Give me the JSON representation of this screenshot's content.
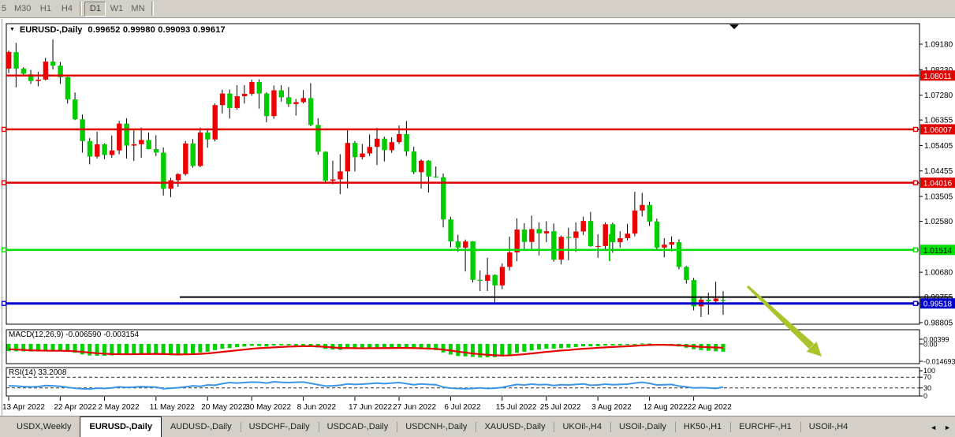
{
  "toolbar": {
    "timeframes": [
      {
        "label": "5",
        "active": false
      },
      {
        "label": "M30",
        "active": false
      },
      {
        "label": "H1",
        "active": false
      },
      {
        "label": "H4",
        "active": false
      },
      {
        "label": "D1",
        "active": true
      },
      {
        "label": "W1",
        "active": false
      },
      {
        "label": "MN",
        "active": false
      }
    ]
  },
  "chart": {
    "symbol_period": "EURUSD-,Daily",
    "ohlc_quote": "0.99652 0.99980 0.99093 0.99617",
    "dropdown_icon": "▼"
  },
  "indicators": {
    "macd_label": "MACD(12,26,9) -0.006590 -0.003154",
    "rsi_label": "RSI(14) 33.2008",
    "macd_axis_labels": [
      "0.00399",
      "0.00",
      "-0.014693"
    ],
    "macd_axis_values": [
      0.00399,
      0,
      -0.014693
    ],
    "rsi_axis_labels": [
      "100",
      "70",
      "30",
      "0"
    ],
    "rsi_axis_values": [
      100,
      70,
      30,
      0
    ]
  },
  "price_axis": {
    "labels": [
      "1.09180",
      "1.08230",
      "1.07280",
      "1.06355",
      "1.05405",
      "1.04455",
      "1.03505",
      "1.02580",
      "1.00680",
      "0.99755",
      "0.98805"
    ],
    "badges": [
      {
        "text": "1.08011",
        "value": 1.08011,
        "bg": "#e00000",
        "fg": "#ffffff"
      },
      {
        "text": "1.06007",
        "value": 1.06007,
        "bg": "#e00000",
        "fg": "#ffffff"
      },
      {
        "text": "1.04016",
        "value": 1.04016,
        "bg": "#e00000",
        "fg": "#ffffff"
      },
      {
        "text": "1.01514",
        "value": 1.01514,
        "bg": "#00e000",
        "fg": "#000000"
      },
      {
        "text": "0.99518",
        "value": 0.99518,
        "bg": "#0000cc",
        "fg": "#ffffff"
      }
    ]
  },
  "tabbar": {
    "tabs": [
      {
        "label": "USDX,Weekly",
        "active": false
      },
      {
        "label": "EURUSD-,Daily",
        "active": true
      },
      {
        "label": "AUDUSD-,Daily",
        "active": false
      },
      {
        "label": "USDCHF-,Daily",
        "active": false
      },
      {
        "label": "USDCAD-,Daily",
        "active": false
      },
      {
        "label": "USDCNH-,Daily",
        "active": false
      },
      {
        "label": "XAUUSD-,Daily",
        "active": false
      },
      {
        "label": "UKOil-,H4",
        "active": false
      },
      {
        "label": "USOil-,Daily",
        "active": false
      },
      {
        "label": "HK50-,H1",
        "active": false
      },
      {
        "label": "EURCHF-,H1",
        "active": false
      },
      {
        "label": "USOil-,H4",
        "active": false
      }
    ],
    "scroll_left": "◄",
    "scroll_right": "►"
  },
  "chart_data": {
    "type": "candlestick",
    "symbol": "EURUSD-",
    "timeframe": "Daily",
    "bull_color": "#ee0000",
    "bear_color": "#00cc00",
    "ylim": [
      0.98745,
      1.09944
    ],
    "date_labels": [
      "13 Apr 2022",
      "22 Apr 2022",
      "2 May 2022",
      "11 May 2022",
      "20 May 2022",
      "30 May 2022",
      "8 Jun 2022",
      "17 Jun 2022",
      "27 Jun 2022",
      "6 Jul 2022",
      "15 Jul 2022",
      "25 Jul 2022",
      "3 Aug 2022",
      "12 Aug 2022",
      "22 Aug 2022"
    ],
    "date_label_indices": [
      0,
      7,
      13,
      20,
      27,
      33,
      40,
      47,
      53,
      60,
      67,
      73,
      80,
      87,
      93
    ],
    "candles": [
      [
        1.0827,
        1.0895,
        1.081,
        1.0889
      ],
      [
        1.0888,
        1.0923,
        1.0757,
        1.0827
      ],
      [
        1.0827,
        1.0832,
        1.0798,
        1.0808
      ],
      [
        1.0806,
        1.0822,
        1.077,
        1.0781
      ],
      [
        1.0781,
        1.0815,
        1.0761,
        1.0786
      ],
      [
        1.0786,
        1.0867,
        1.0782,
        1.0853
      ],
      [
        1.0853,
        1.0936,
        1.0824,
        1.0838
      ],
      [
        1.0838,
        1.0852,
        1.077,
        1.0795
      ],
      [
        1.0795,
        1.0797,
        1.0697,
        1.0712
      ],
      [
        1.0712,
        1.0738,
        1.0635,
        1.0638
      ],
      [
        1.0638,
        1.0656,
        1.0514,
        1.0557
      ],
      [
        1.0557,
        1.0568,
        1.047,
        1.0499
      ],
      [
        1.0499,
        1.0592,
        1.0492,
        1.0545
      ],
      [
        1.0545,
        1.0548,
        1.049,
        1.0505
      ],
      [
        1.0505,
        1.0578,
        1.0495,
        1.0522
      ],
      [
        1.0522,
        1.0632,
        1.0508,
        1.0622
      ],
      [
        1.0622,
        1.0642,
        1.0492,
        1.054
      ],
      [
        1.054,
        1.0599,
        1.0483,
        1.0545
      ],
      [
        1.0545,
        1.0607,
        1.0495,
        1.0561
      ],
      [
        1.0561,
        1.0589,
        1.0526,
        1.0527
      ],
      [
        1.0527,
        1.0579,
        1.0501,
        1.0514
      ],
      [
        1.0514,
        1.0533,
        1.0354,
        1.0379
      ],
      [
        1.0379,
        1.042,
        1.0348,
        1.0411
      ],
      [
        1.0411,
        1.0437,
        1.0386,
        1.0434
      ],
      [
        1.0434,
        1.0557,
        1.0428,
        1.0548
      ],
      [
        1.0548,
        1.0564,
        1.0458,
        1.0464
      ],
      [
        1.0464,
        1.0607,
        1.0459,
        1.0589
      ],
      [
        1.0589,
        1.0604,
        1.0532,
        1.0563
      ],
      [
        1.0563,
        1.0697,
        1.0556,
        1.0691
      ],
      [
        1.0691,
        1.0748,
        1.066,
        1.0734
      ],
      [
        1.0734,
        1.0749,
        1.0641,
        1.068
      ],
      [
        1.068,
        1.0765,
        1.0674,
        1.0724
      ],
      [
        1.0724,
        1.0765,
        1.0697,
        1.0733
      ],
      [
        1.0733,
        1.0786,
        1.0726,
        1.0777
      ],
      [
        1.0777,
        1.0787,
        1.0678,
        1.0734
      ],
      [
        1.0734,
        1.0739,
        1.0627,
        1.065
      ],
      [
        1.065,
        1.0764,
        1.064,
        1.0746
      ],
      [
        1.0746,
        1.0765,
        1.0704,
        1.072
      ],
      [
        1.072,
        1.0758,
        1.0684,
        1.0695
      ],
      [
        1.0695,
        1.0714,
        1.0652,
        1.0702
      ],
      [
        1.0702,
        1.0747,
        1.0697,
        1.0717
      ],
      [
        1.0717,
        1.0773,
        1.0612,
        1.0617
      ],
      [
        1.0617,
        1.0642,
        1.0506,
        1.0517
      ],
      [
        1.0517,
        1.0519,
        1.0398,
        1.0409
      ],
      [
        1.0409,
        1.0484,
        1.0396,
        1.0414
      ],
      [
        1.0414,
        1.0508,
        1.0359,
        1.0444
      ],
      [
        1.0444,
        1.0601,
        1.0381,
        1.055
      ],
      [
        1.055,
        1.0557,
        1.0444,
        1.0497
      ],
      [
        1.0497,
        1.0546,
        1.0489,
        1.0511
      ],
      [
        1.0511,
        1.0582,
        1.0501,
        1.0535
      ],
      [
        1.0535,
        1.0606,
        1.0468,
        1.0566
      ],
      [
        1.0566,
        1.0573,
        1.0481,
        1.0523
      ],
      [
        1.0523,
        1.0571,
        1.0513,
        1.0553
      ],
      [
        1.0553,
        1.0615,
        1.0546,
        1.0583
      ],
      [
        1.0583,
        1.0632,
        1.0501,
        1.0518
      ],
      [
        1.0518,
        1.0536,
        1.0434,
        1.0441
      ],
      [
        1.0441,
        1.0489,
        1.038,
        1.0484
      ],
      [
        1.0484,
        1.0486,
        1.0365,
        1.0425
      ],
      [
        1.0425,
        1.0462,
        1.042,
        1.0422
      ],
      [
        1.0422,
        1.0436,
        1.0235,
        1.0265
      ],
      [
        1.0265,
        1.0275,
        1.0161,
        1.0183
      ],
      [
        1.0183,
        1.0208,
        1.0144,
        1.016
      ],
      [
        1.016,
        1.019,
        1.0071,
        1.0183
      ],
      [
        1.0183,
        1.0184,
        1.003,
        1.004
      ],
      [
        1.004,
        1.0075,
        0.9998,
        1.0036
      ],
      [
        1.0036,
        1.0122,
        0.9998,
        1.0058
      ],
      [
        1.0058,
        1.006,
        0.9952,
        1.0019
      ],
      [
        1.0019,
        1.0101,
        1.0005,
        1.0088
      ],
      [
        1.0088,
        1.0201,
        1.0075,
        1.0142
      ],
      [
        1.0142,
        1.0269,
        1.0109,
        1.0227
      ],
      [
        1.0227,
        1.0251,
        1.0155,
        1.0181
      ],
      [
        1.0181,
        1.0279,
        1.0152,
        1.0229
      ],
      [
        1.0229,
        1.0254,
        1.0131,
        1.0213
      ],
      [
        1.0213,
        1.0258,
        1.018,
        1.0221
      ],
      [
        1.0221,
        1.025,
        1.0108,
        1.0115
      ],
      [
        1.0115,
        1.0205,
        1.0097,
        1.02
      ],
      [
        1.02,
        1.0234,
        1.0113,
        1.0196
      ],
      [
        1.0196,
        1.0254,
        1.0144,
        1.022
      ],
      [
        1.022,
        1.0275,
        1.0207,
        1.0259
      ],
      [
        1.0259,
        1.0293,
        1.0163,
        1.0165
      ],
      [
        1.0165,
        1.021,
        1.0122,
        1.0166
      ],
      [
        1.0166,
        1.0254,
        1.0151,
        1.0247
      ],
      [
        1.0247,
        1.0253,
        1.0141,
        1.018
      ],
      [
        1.018,
        1.0221,
        1.0159,
        1.0195
      ],
      [
        1.0195,
        1.0249,
        1.0187,
        1.0212
      ],
      [
        1.0212,
        1.0368,
        1.0202,
        1.0298
      ],
      [
        1.0298,
        1.0364,
        1.0276,
        1.0319
      ],
      [
        1.0319,
        1.0331,
        1.0241,
        1.0257
      ],
      [
        1.0257,
        1.0268,
        1.0154,
        1.016
      ],
      [
        1.016,
        1.0195,
        1.0124,
        1.0171
      ],
      [
        1.0171,
        1.0202,
        1.0146,
        1.018
      ],
      [
        1.018,
        1.0191,
        1.0079,
        1.0088
      ],
      [
        1.0088,
        1.0092,
        1.0026,
        1.0039
      ],
      [
        1.0039,
        1.0047,
        0.9926,
        0.9941
      ],
      [
        0.9941,
        0.9975,
        0.9901,
        0.9966
      ],
      [
        0.9966,
        0.9992,
        0.991,
        0.996
      ],
      [
        0.996,
        1.0033,
        0.9947,
        0.997
      ],
      [
        0.99652,
        0.9998,
        0.99093,
        0.99617
      ]
    ],
    "hlines": [
      {
        "price": 1.08011,
        "color": "#e00000",
        "width": 2.5,
        "handles": false,
        "start_frac": 0
      },
      {
        "price": 1.06007,
        "color": "#e00000",
        "width": 2.5,
        "handles": true,
        "start_frac": 0
      },
      {
        "price": 1.04016,
        "color": "#e00000",
        "width": 2.5,
        "handles": true,
        "start_frac": 0
      },
      {
        "price": 1.01514,
        "color": "#00e000",
        "width": 2.5,
        "handles": true,
        "start_frac": 0
      },
      {
        "price": 0.99755,
        "color": "#000000",
        "width": 2,
        "handles": false,
        "start_frac": 0.19,
        "extend_over_axis": true
      },
      {
        "price": 0.99518,
        "color": "#0000cc",
        "width": 3,
        "handles": true,
        "start_frac": 0
      }
    ],
    "macd": {
      "hist_color": "#00d300",
      "signal_color": "#e60000",
      "histogram": [
        -0.006,
        -0.0062,
        -0.0063,
        -0.0064,
        -0.0063,
        -0.006,
        -0.0058,
        -0.0059,
        -0.0065,
        -0.0075,
        -0.0088,
        -0.0098,
        -0.01,
        -0.01,
        -0.0097,
        -0.009,
        -0.0088,
        -0.0086,
        -0.0082,
        -0.008,
        -0.008,
        -0.0092,
        -0.0096,
        -0.0095,
        -0.0085,
        -0.0082,
        -0.0072,
        -0.0066,
        -0.0052,
        -0.004,
        -0.0035,
        -0.0028,
        -0.0022,
        -0.0016,
        -0.0018,
        -0.0022,
        -0.0014,
        -0.0011,
        -0.0012,
        -0.0013,
        -0.0012,
        -0.0018,
        -0.003,
        -0.0042,
        -0.0048,
        -0.005,
        -0.0042,
        -0.004,
        -0.0038,
        -0.0035,
        -0.0033,
        -0.0034,
        -0.0033,
        -0.003,
        -0.0034,
        -0.0042,
        -0.0044,
        -0.0048,
        -0.0052,
        -0.0072,
        -0.009,
        -0.0102,
        -0.0105,
        -0.011,
        -0.0115,
        -0.0113,
        -0.0112,
        -0.0105,
        -0.0092,
        -0.0075,
        -0.0066,
        -0.0055,
        -0.0048,
        -0.004,
        -0.004,
        -0.0036,
        -0.0032,
        -0.0026,
        -0.002,
        -0.002,
        -0.002,
        -0.0014,
        -0.0013,
        -0.0012,
        -0.0009,
        -0.0002,
        0.0004,
        0.0004,
        -0.0002,
        -0.001,
        -0.0014,
        -0.0022,
        -0.0032,
        -0.0045,
        -0.0052,
        -0.0058,
        -0.0062,
        -0.0066
      ],
      "signal": [
        -0.0045,
        -0.0048,
        -0.0051,
        -0.0054,
        -0.0056,
        -0.0057,
        -0.0058,
        -0.0058,
        -0.0059,
        -0.0062,
        -0.0067,
        -0.0073,
        -0.0079,
        -0.0083,
        -0.0086,
        -0.0087,
        -0.0087,
        -0.0087,
        -0.0086,
        -0.0085,
        -0.0084,
        -0.0085,
        -0.0087,
        -0.0089,
        -0.0088,
        -0.0087,
        -0.0084,
        -0.008,
        -0.0074,
        -0.0067,
        -0.0061,
        -0.0054,
        -0.0048,
        -0.0041,
        -0.0036,
        -0.0033,
        -0.0029,
        -0.0026,
        -0.0023,
        -0.0021,
        -0.0019,
        -0.0019,
        -0.0021,
        -0.0025,
        -0.003,
        -0.0034,
        -0.0035,
        -0.0036,
        -0.0037,
        -0.0036,
        -0.0036,
        -0.0035,
        -0.0035,
        -0.0034,
        -0.0034,
        -0.0035,
        -0.0037,
        -0.0039,
        -0.0042,
        -0.0048,
        -0.0056,
        -0.0065,
        -0.0073,
        -0.0081,
        -0.0087,
        -0.0092,
        -0.0096,
        -0.0098,
        -0.0097,
        -0.0092,
        -0.0087,
        -0.0081,
        -0.0074,
        -0.0067,
        -0.0062,
        -0.0056,
        -0.0052,
        -0.0046,
        -0.0041,
        -0.0037,
        -0.0033,
        -0.0029,
        -0.0026,
        -0.0023,
        -0.002,
        -0.0016,
        -0.0012,
        -0.0009,
        -0.0007,
        -0.0008,
        -0.0009,
        -0.0012,
        -0.0016,
        -0.0021,
        -0.0025,
        -0.0028,
        -0.003,
        -0.0032
      ]
    },
    "rsi": {
      "color": "#3b96e8",
      "levels": [
        70,
        30
      ],
      "values": [
        38,
        37,
        35,
        34,
        35,
        39,
        38,
        36,
        32,
        29,
        27,
        26,
        29,
        28,
        30,
        34,
        32,
        33,
        35,
        34,
        33,
        27,
        29,
        31,
        34,
        38,
        36,
        41,
        40,
        46,
        50,
        48,
        50,
        52,
        51,
        48,
        53,
        51,
        50,
        51,
        52,
        47,
        42,
        37,
        38,
        40,
        45,
        43,
        44,
        46,
        48,
        46,
        48,
        50,
        46,
        42,
        45,
        43,
        42,
        33,
        29,
        28,
        27,
        28,
        30,
        28,
        29,
        32,
        38,
        43,
        41,
        44,
        42,
        43,
        39,
        42,
        41,
        43,
        45,
        40,
        41,
        44,
        42,
        43,
        44,
        48,
        51,
        47,
        41,
        42,
        43,
        37,
        34,
        30,
        31,
        30,
        28,
        33.2
      ]
    },
    "annotations": [
      {
        "type": "arrow",
        "direction": "down-right",
        "color": "#a9c42d"
      }
    ],
    "scroll_marker": true,
    "vertical_mark": {
      "color": "#00dd00"
    }
  }
}
